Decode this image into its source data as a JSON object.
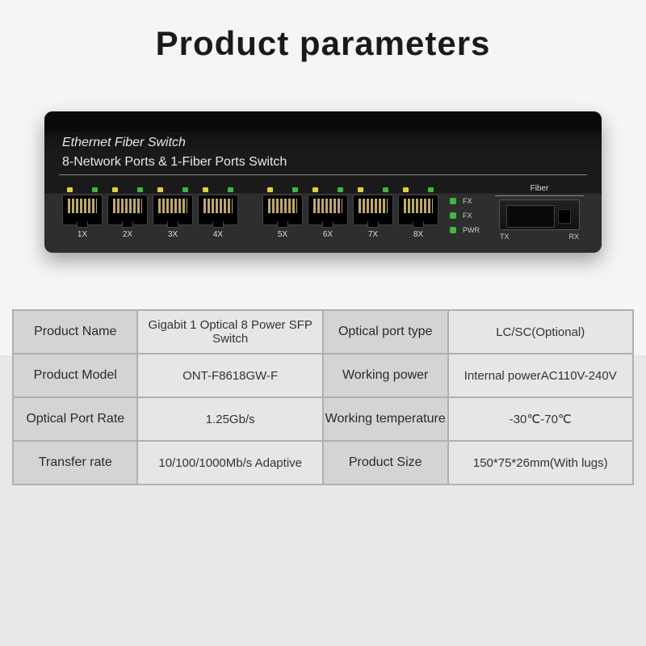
{
  "title": "Product parameters",
  "device": {
    "heading": "Ethernet Fiber Switch",
    "subheading": "8-Network Ports & 1-Fiber Ports Switch",
    "ports": [
      "1X",
      "2X",
      "3X",
      "4X",
      "5X",
      "6X",
      "7X",
      "8X"
    ],
    "status": [
      "FX",
      "FX",
      "PWR"
    ],
    "fiber_label": "Fiber",
    "tx_label": "TX",
    "rx_label": "RX"
  },
  "specs": [
    {
      "k1": "Product Name",
      "v1": "Gigabit 1 Optical 8 Power SFP Switch",
      "k2": "Optical port type",
      "v2": "LC/SC(Optional)"
    },
    {
      "k1": "Product Model",
      "v1": "ONT-F8618GW-F",
      "k2": "Working power",
      "v2": "Internal powerAC110V-240V"
    },
    {
      "k1": "Optical Port Rate",
      "v1": "1.25Gb/s",
      "k2": "Working temperature",
      "v2": "-30℃-70℃"
    },
    {
      "k1": "Transfer rate",
      "v1": "10/100/1000Mb/s Adaptive",
      "k2": "Product Size",
      "v2": "150*75*26mm(With lugs)"
    }
  ],
  "colors": {
    "table_border": "#b0b0b0",
    "key_bg": "#d4d4d4",
    "val_bg": "#e6e6e6"
  }
}
